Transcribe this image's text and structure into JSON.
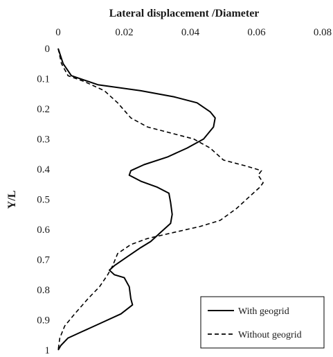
{
  "chart_data": {
    "type": "line",
    "xlabel": "Lateral displacement /Diameter",
    "ylabel": "Y/L",
    "xlim": [
      0,
      0.08
    ],
    "ylim": [
      0,
      1
    ],
    "x_axis_position": "top",
    "y_axis_inverted": true,
    "x_ticks": [
      "0",
      "0.02",
      "0.04",
      "0.06",
      "0.08"
    ],
    "y_ticks": [
      "0",
      "0.1",
      "0.2",
      "0.3",
      "0.4",
      "0.5",
      "0.6",
      "0.7",
      "0.8",
      "0.9",
      "1"
    ],
    "x_tick_values": [
      0,
      0.02,
      0.04,
      0.06,
      0.08
    ],
    "y_tick_values": [
      0,
      0.1,
      0.2,
      0.3,
      0.4,
      0.5,
      0.6,
      0.7,
      0.8,
      0.9,
      1
    ],
    "grid": false,
    "legend_position": "bottom-right",
    "series": [
      {
        "name": "With geogrid",
        "line_style": "solid",
        "color": "#000000",
        "points": [
          [
            0.0,
            0.0
          ],
          [
            0.0015,
            0.05
          ],
          [
            0.004,
            0.09
          ],
          [
            0.012,
            0.12
          ],
          [
            0.025,
            0.14
          ],
          [
            0.035,
            0.16
          ],
          [
            0.042,
            0.18
          ],
          [
            0.046,
            0.21
          ],
          [
            0.0475,
            0.23
          ],
          [
            0.047,
            0.26
          ],
          [
            0.044,
            0.3
          ],
          [
            0.039,
            0.33
          ],
          [
            0.033,
            0.36
          ],
          [
            0.026,
            0.385
          ],
          [
            0.022,
            0.405
          ],
          [
            0.0215,
            0.42
          ],
          [
            0.025,
            0.44
          ],
          [
            0.03,
            0.46
          ],
          [
            0.0335,
            0.48
          ],
          [
            0.034,
            0.51
          ],
          [
            0.0345,
            0.55
          ],
          [
            0.034,
            0.58
          ],
          [
            0.031,
            0.61
          ],
          [
            0.028,
            0.64
          ],
          [
            0.025,
            0.66
          ],
          [
            0.021,
            0.69
          ],
          [
            0.017,
            0.72
          ],
          [
            0.0155,
            0.735
          ],
          [
            0.017,
            0.75
          ],
          [
            0.02,
            0.76
          ],
          [
            0.0215,
            0.79
          ],
          [
            0.022,
            0.83
          ],
          [
            0.0225,
            0.85
          ],
          [
            0.019,
            0.88
          ],
          [
            0.013,
            0.91
          ],
          [
            0.007,
            0.94
          ],
          [
            0.003,
            0.96
          ],
          [
            0.0008,
            0.985
          ],
          [
            0.0,
            1.0
          ]
        ]
      },
      {
        "name": "Without geogrid",
        "line_style": "dashed",
        "color": "#000000",
        "points": [
          [
            0.0,
            0.0
          ],
          [
            0.001,
            0.05
          ],
          [
            0.003,
            0.09
          ],
          [
            0.008,
            0.11
          ],
          [
            0.014,
            0.14
          ],
          [
            0.018,
            0.18
          ],
          [
            0.022,
            0.23
          ],
          [
            0.027,
            0.26
          ],
          [
            0.034,
            0.28
          ],
          [
            0.041,
            0.3
          ],
          [
            0.046,
            0.33
          ],
          [
            0.05,
            0.37
          ],
          [
            0.057,
            0.39
          ],
          [
            0.0615,
            0.405
          ],
          [
            0.0605,
            0.42
          ],
          [
            0.062,
            0.445
          ],
          [
            0.061,
            0.46
          ],
          [
            0.058,
            0.49
          ],
          [
            0.054,
            0.53
          ],
          [
            0.049,
            0.57
          ],
          [
            0.043,
            0.59
          ],
          [
            0.035,
            0.61
          ],
          [
            0.027,
            0.63
          ],
          [
            0.022,
            0.65
          ],
          [
            0.018,
            0.68
          ],
          [
            0.0165,
            0.72
          ],
          [
            0.015,
            0.75
          ],
          [
            0.0125,
            0.79
          ],
          [
            0.009,
            0.83
          ],
          [
            0.005,
            0.88
          ],
          [
            0.002,
            0.92
          ],
          [
            0.0005,
            0.96
          ],
          [
            0.0,
            1.0
          ]
        ]
      }
    ]
  }
}
